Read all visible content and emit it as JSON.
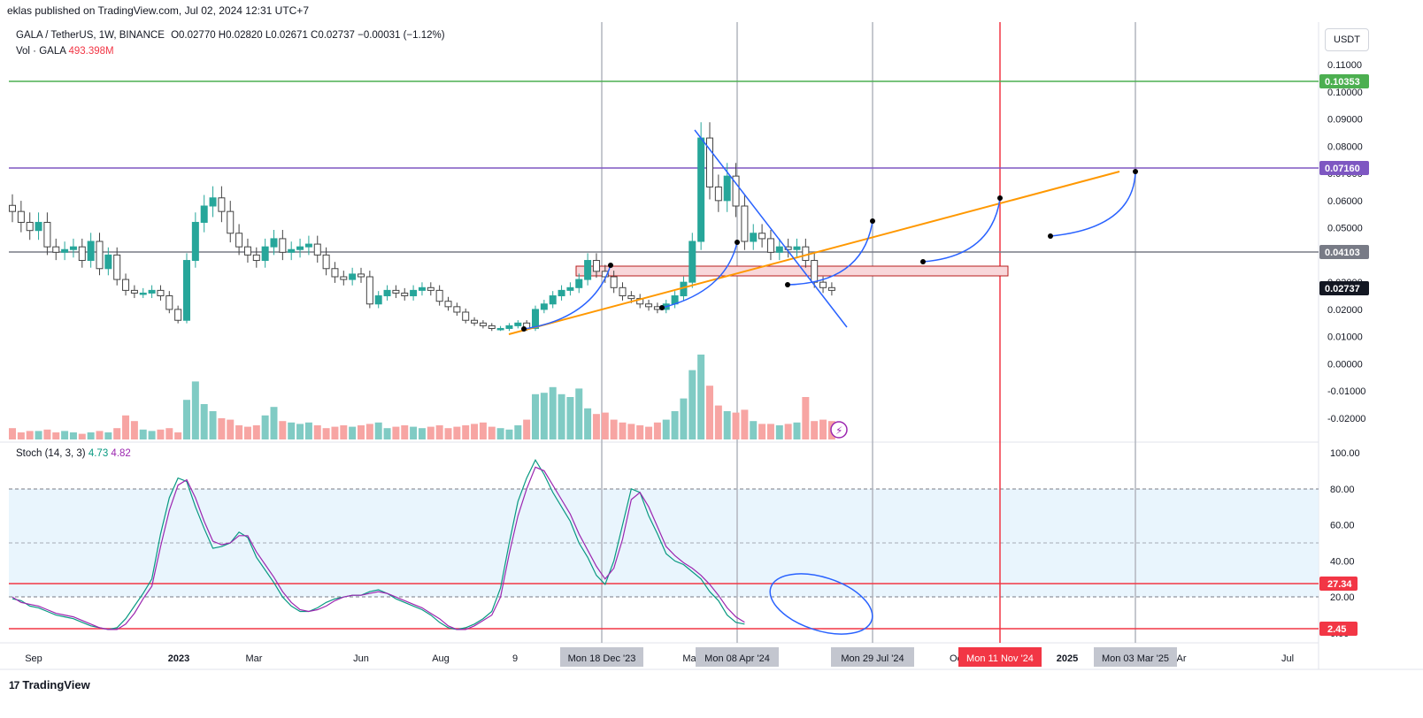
{
  "header": {
    "published": "eklas published on TradingView.com, Jul 02, 2024 12:31 UTC+7"
  },
  "legend": {
    "symbol": "GALA / TetherUS, 1W, BINANCE",
    "ohlc": "O0.02770  H0.02820  L0.02671  C0.02737  −0.00031 (−1.12%)",
    "vol_label": "Vol · GALA",
    "vol_value": "493.398M",
    "stoch_label": "Stoch (14, 3, 3)",
    "stoch_k": "4.73",
    "stoch_d": "4.82"
  },
  "currency": "USDT",
  "footer": {
    "brand": "TradingView",
    "logo": "17"
  },
  "colors": {
    "up": "#26a69a",
    "down": "#ef5350",
    "vol_up": "#80cbc4",
    "vol_down": "#f7a5a3",
    "green_line": "#4caf50",
    "purple_line": "#7e57c2",
    "grey_line": "#787b86",
    "orange": "#ff9800",
    "blue": "#2962ff",
    "red": "#f23645",
    "k_line": "#089981",
    "d_line": "#9c27b0"
  },
  "chart_data": [
    {
      "type": "candlestick",
      "title": "GALA / TetherUS, 1W, BINANCE",
      "y_axis": {
        "ticks": [
          "0.11000",
          "0.10000",
          "0.09000",
          "0.08000",
          "0.07000",
          "0.06000",
          "0.05000",
          "0.04000",
          "0.03000",
          "0.02000",
          "0.01000",
          "0.00000",
          "-0.01000",
          "-0.02000"
        ],
        "ylim": [
          -0.0245,
          0.117
        ]
      },
      "x_ticks": [
        "Sep",
        "2023",
        "Mar",
        "Jun",
        "Aug",
        "9",
        "Ma",
        "Oc",
        "2025",
        "Ar",
        "Jul"
      ],
      "x_markers": [
        "Mon 18 Dec '23",
        "Mon 08 Apr '24",
        "Mon 29 Jul '24",
        "Mon 11 Nov '24",
        "Mon 03 Mar '25"
      ],
      "price_labels": [
        {
          "label": "0.10353",
          "value": 0.10353,
          "color": "#4caf50"
        },
        {
          "label": "0.07160",
          "value": 0.0716,
          "color": "#7e57c2"
        },
        {
          "label": "0.04103",
          "value": 0.04103,
          "color": "#787b86"
        },
        {
          "label": "0.02737",
          "value": 0.02737,
          "color": "#131722"
        }
      ],
      "close_series": [
        0.056,
        0.052,
        0.049,
        0.052,
        0.043,
        0.041,
        0.042,
        0.043,
        0.038,
        0.045,
        0.035,
        0.04,
        0.031,
        0.027,
        0.026,
        0.026,
        0.027,
        0.025,
        0.02,
        0.016,
        0.038,
        0.052,
        0.058,
        0.061,
        0.056,
        0.048,
        0.043,
        0.04,
        0.038,
        0.043,
        0.046,
        0.041,
        0.042,
        0.043,
        0.044,
        0.04,
        0.035,
        0.032,
        0.031,
        0.033,
        0.032,
        0.022,
        0.025,
        0.027,
        0.026,
        0.025,
        0.027,
        0.028,
        0.027,
        0.023,
        0.021,
        0.019,
        0.016,
        0.015,
        0.014,
        0.013,
        0.013,
        0.014,
        0.015,
        0.013,
        0.02,
        0.022,
        0.025,
        0.027,
        0.028,
        0.031,
        0.038,
        0.034,
        0.032,
        0.028,
        0.025,
        0.024,
        0.022,
        0.021,
        0.02,
        0.022,
        0.025,
        0.03,
        0.045,
        0.083,
        0.065,
        0.06,
        0.069,
        0.058,
        0.045,
        0.048,
        0.046,
        0.041,
        0.043,
        0.042,
        0.043,
        0.038,
        0.03,
        0.028,
        0.027
      ]
    },
    {
      "type": "bar",
      "title": "Vol · GALA",
      "values_relative": [
        8,
        5,
        6,
        6,
        7,
        5,
        6,
        5,
        4,
        5,
        6,
        5,
        8,
        17,
        13,
        7,
        6,
        7,
        8,
        5,
        28,
        41,
        25,
        20,
        15,
        14,
        10,
        9,
        10,
        17,
        23,
        13,
        12,
        11,
        12,
        10,
        8,
        9,
        10,
        9,
        10,
        11,
        12,
        8,
        9,
        10,
        9,
        8,
        9,
        10,
        8,
        9,
        10,
        11,
        12,
        9,
        8,
        7,
        10,
        14,
        32,
        33,
        37,
        32,
        30,
        36,
        22,
        18,
        19,
        14,
        12,
        11,
        10,
        9,
        12,
        14,
        20,
        29,
        49,
        60,
        38,
        24,
        20,
        19,
        21,
        13,
        11,
        11,
        10,
        11,
        12,
        30,
        13,
        14,
        13
      ]
    },
    {
      "type": "line",
      "title": "Stoch (14, 3, 3)",
      "y_axis": {
        "ticks": [
          "100.00",
          "80.00",
          "60.00",
          "40.00",
          "20.00",
          "0.00"
        ],
        "ylim": [
          0,
          100
        ]
      },
      "price_labels": [
        {
          "label": "27.34",
          "value": 27.34
        },
        {
          "label": "2.45",
          "value": 2.45
        }
      ],
      "series": [
        {
          "name": "%K",
          "values": [
            19,
            18,
            15,
            14,
            12,
            10,
            9,
            8,
            6,
            4,
            3,
            2,
            3,
            8,
            15,
            22,
            30,
            55,
            75,
            86,
            84,
            70,
            58,
            47,
            48,
            50,
            56,
            53,
            42,
            35,
            28,
            20,
            15,
            12,
            12,
            14,
            17,
            19,
            20,
            21,
            21,
            23,
            24,
            22,
            19,
            17,
            15,
            13,
            10,
            6,
            3,
            2,
            3,
            5,
            8,
            12,
            25,
            50,
            73,
            86,
            96,
            88,
            78,
            70,
            62,
            50,
            42,
            32,
            27,
            40,
            60,
            80,
            78,
            65,
            55,
            44,
            40,
            38,
            34,
            30,
            23,
            18,
            10,
            6,
            5
          ]
        },
        {
          "name": "%D",
          "values": [
            20,
            17,
            16,
            15,
            13,
            11,
            10,
            9,
            7,
            5,
            3,
            2,
            2,
            5,
            11,
            19,
            26,
            48,
            68,
            82,
            85,
            75,
            62,
            51,
            49,
            50,
            54,
            54,
            45,
            38,
            31,
            23,
            17,
            13,
            12,
            13,
            15,
            18,
            20,
            21,
            21,
            22,
            23,
            22,
            20,
            18,
            16,
            14,
            11,
            8,
            4,
            2,
            2,
            4,
            7,
            10,
            20,
            44,
            65,
            80,
            92,
            90,
            82,
            74,
            66,
            55,
            46,
            37,
            30,
            36,
            52,
            74,
            78,
            70,
            59,
            48,
            43,
            39,
            36,
            32,
            27,
            21,
            14,
            9,
            6
          ]
        }
      ]
    }
  ]
}
